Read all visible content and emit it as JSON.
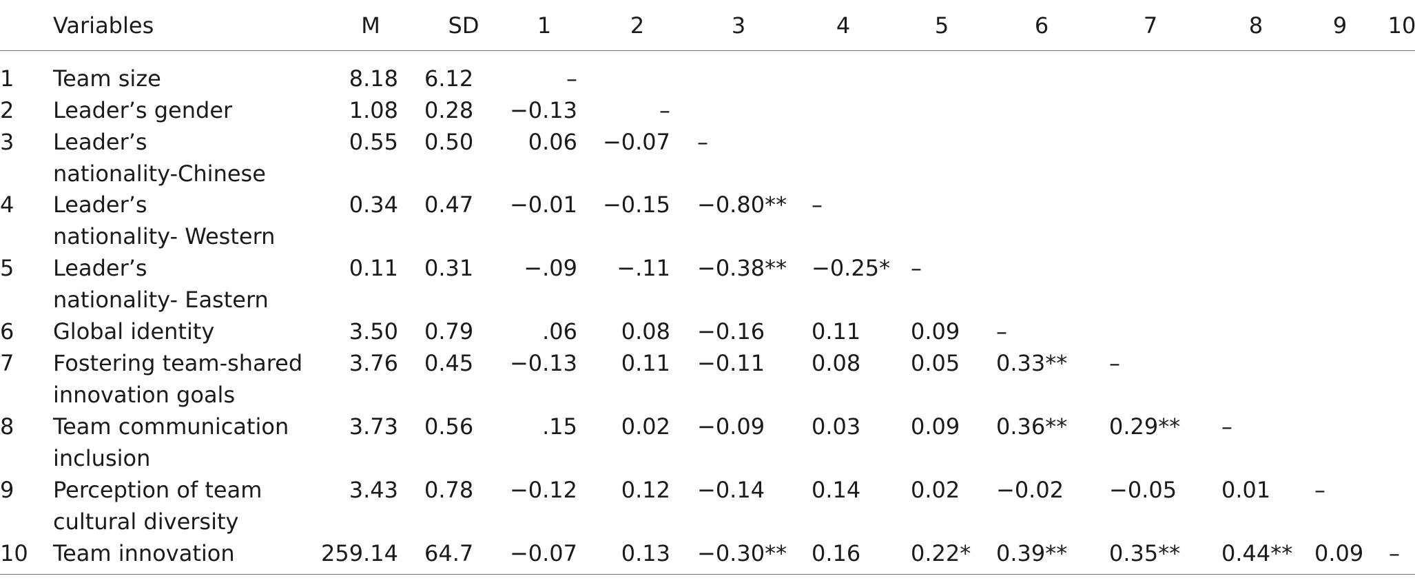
{
  "table": {
    "headers": {
      "variables": "Variables",
      "m": "M",
      "sd": "SD",
      "cols": [
        "1",
        "2",
        "3",
        "4",
        "5",
        "6",
        "7",
        "8",
        "9",
        "10"
      ]
    },
    "rows": [
      {
        "num": "1",
        "label": [
          "Team size"
        ],
        "m": "8.18",
        "sd": "6.12",
        "vals": [
          "–"
        ]
      },
      {
        "num": "2",
        "label": [
          "Leader’s gender"
        ],
        "m": "1.08",
        "sd": "0.28",
        "vals": [
          "−0.13",
          "–"
        ]
      },
      {
        "num": "3",
        "label": [
          "Leader’s",
          "nationality-Chinese"
        ],
        "m": "0.55",
        "sd": "0.50",
        "vals": [
          "0.06",
          "−0.07",
          "–"
        ]
      },
      {
        "num": "4",
        "label": [
          "Leader’s",
          "nationality- Western"
        ],
        "m": "0.34",
        "sd": "0.47",
        "vals": [
          "−0.01",
          "−0.15",
          "−0.80**",
          "–"
        ]
      },
      {
        "num": "5",
        "label": [
          "Leader’s",
          "nationality- Eastern"
        ],
        "m": "0.11",
        "sd": "0.31",
        "vals": [
          "−.09",
          "−.11",
          "−0.38**",
          "−0.25*",
          "–"
        ]
      },
      {
        "num": "6",
        "label": [
          "Global identity"
        ],
        "m": "3.50",
        "sd": "0.79",
        "vals": [
          ".06",
          "0.08",
          "−0.16",
          "0.11",
          "0.09",
          "–"
        ]
      },
      {
        "num": "7",
        "label": [
          "Fostering team-shared",
          "innovation goals"
        ],
        "m": "3.76",
        "sd": "0.45",
        "vals": [
          "−0.13",
          "0.11",
          "−0.11",
          "0.08",
          "0.05",
          "0.33**",
          "–"
        ]
      },
      {
        "num": "8",
        "label": [
          "Team communication",
          "inclusion"
        ],
        "m": "3.73",
        "sd": "0.56",
        "vals": [
          ".15",
          "0.02",
          "−0.09",
          "0.03",
          "0.09",
          "0.36**",
          "0.29**",
          "–"
        ]
      },
      {
        "num": "9",
        "label": [
          "Perception of team",
          "cultural diversity"
        ],
        "m": "3.43",
        "sd": "0.78",
        "vals": [
          "−0.12",
          "0.12",
          "−0.14",
          "0.14",
          "0.02",
          "−0.02",
          "−0.05",
          "0.01",
          "–"
        ]
      },
      {
        "num": "10",
        "label": [
          "Team innovation"
        ],
        "m": "259.14",
        "sd": "64.7",
        "vals": [
          "−0.07",
          "0.13",
          "−0.30**",
          "0.16",
          "0.22*",
          "0.39**",
          "0.35**",
          "0.44**",
          "0.09",
          "–"
        ]
      }
    ]
  }
}
